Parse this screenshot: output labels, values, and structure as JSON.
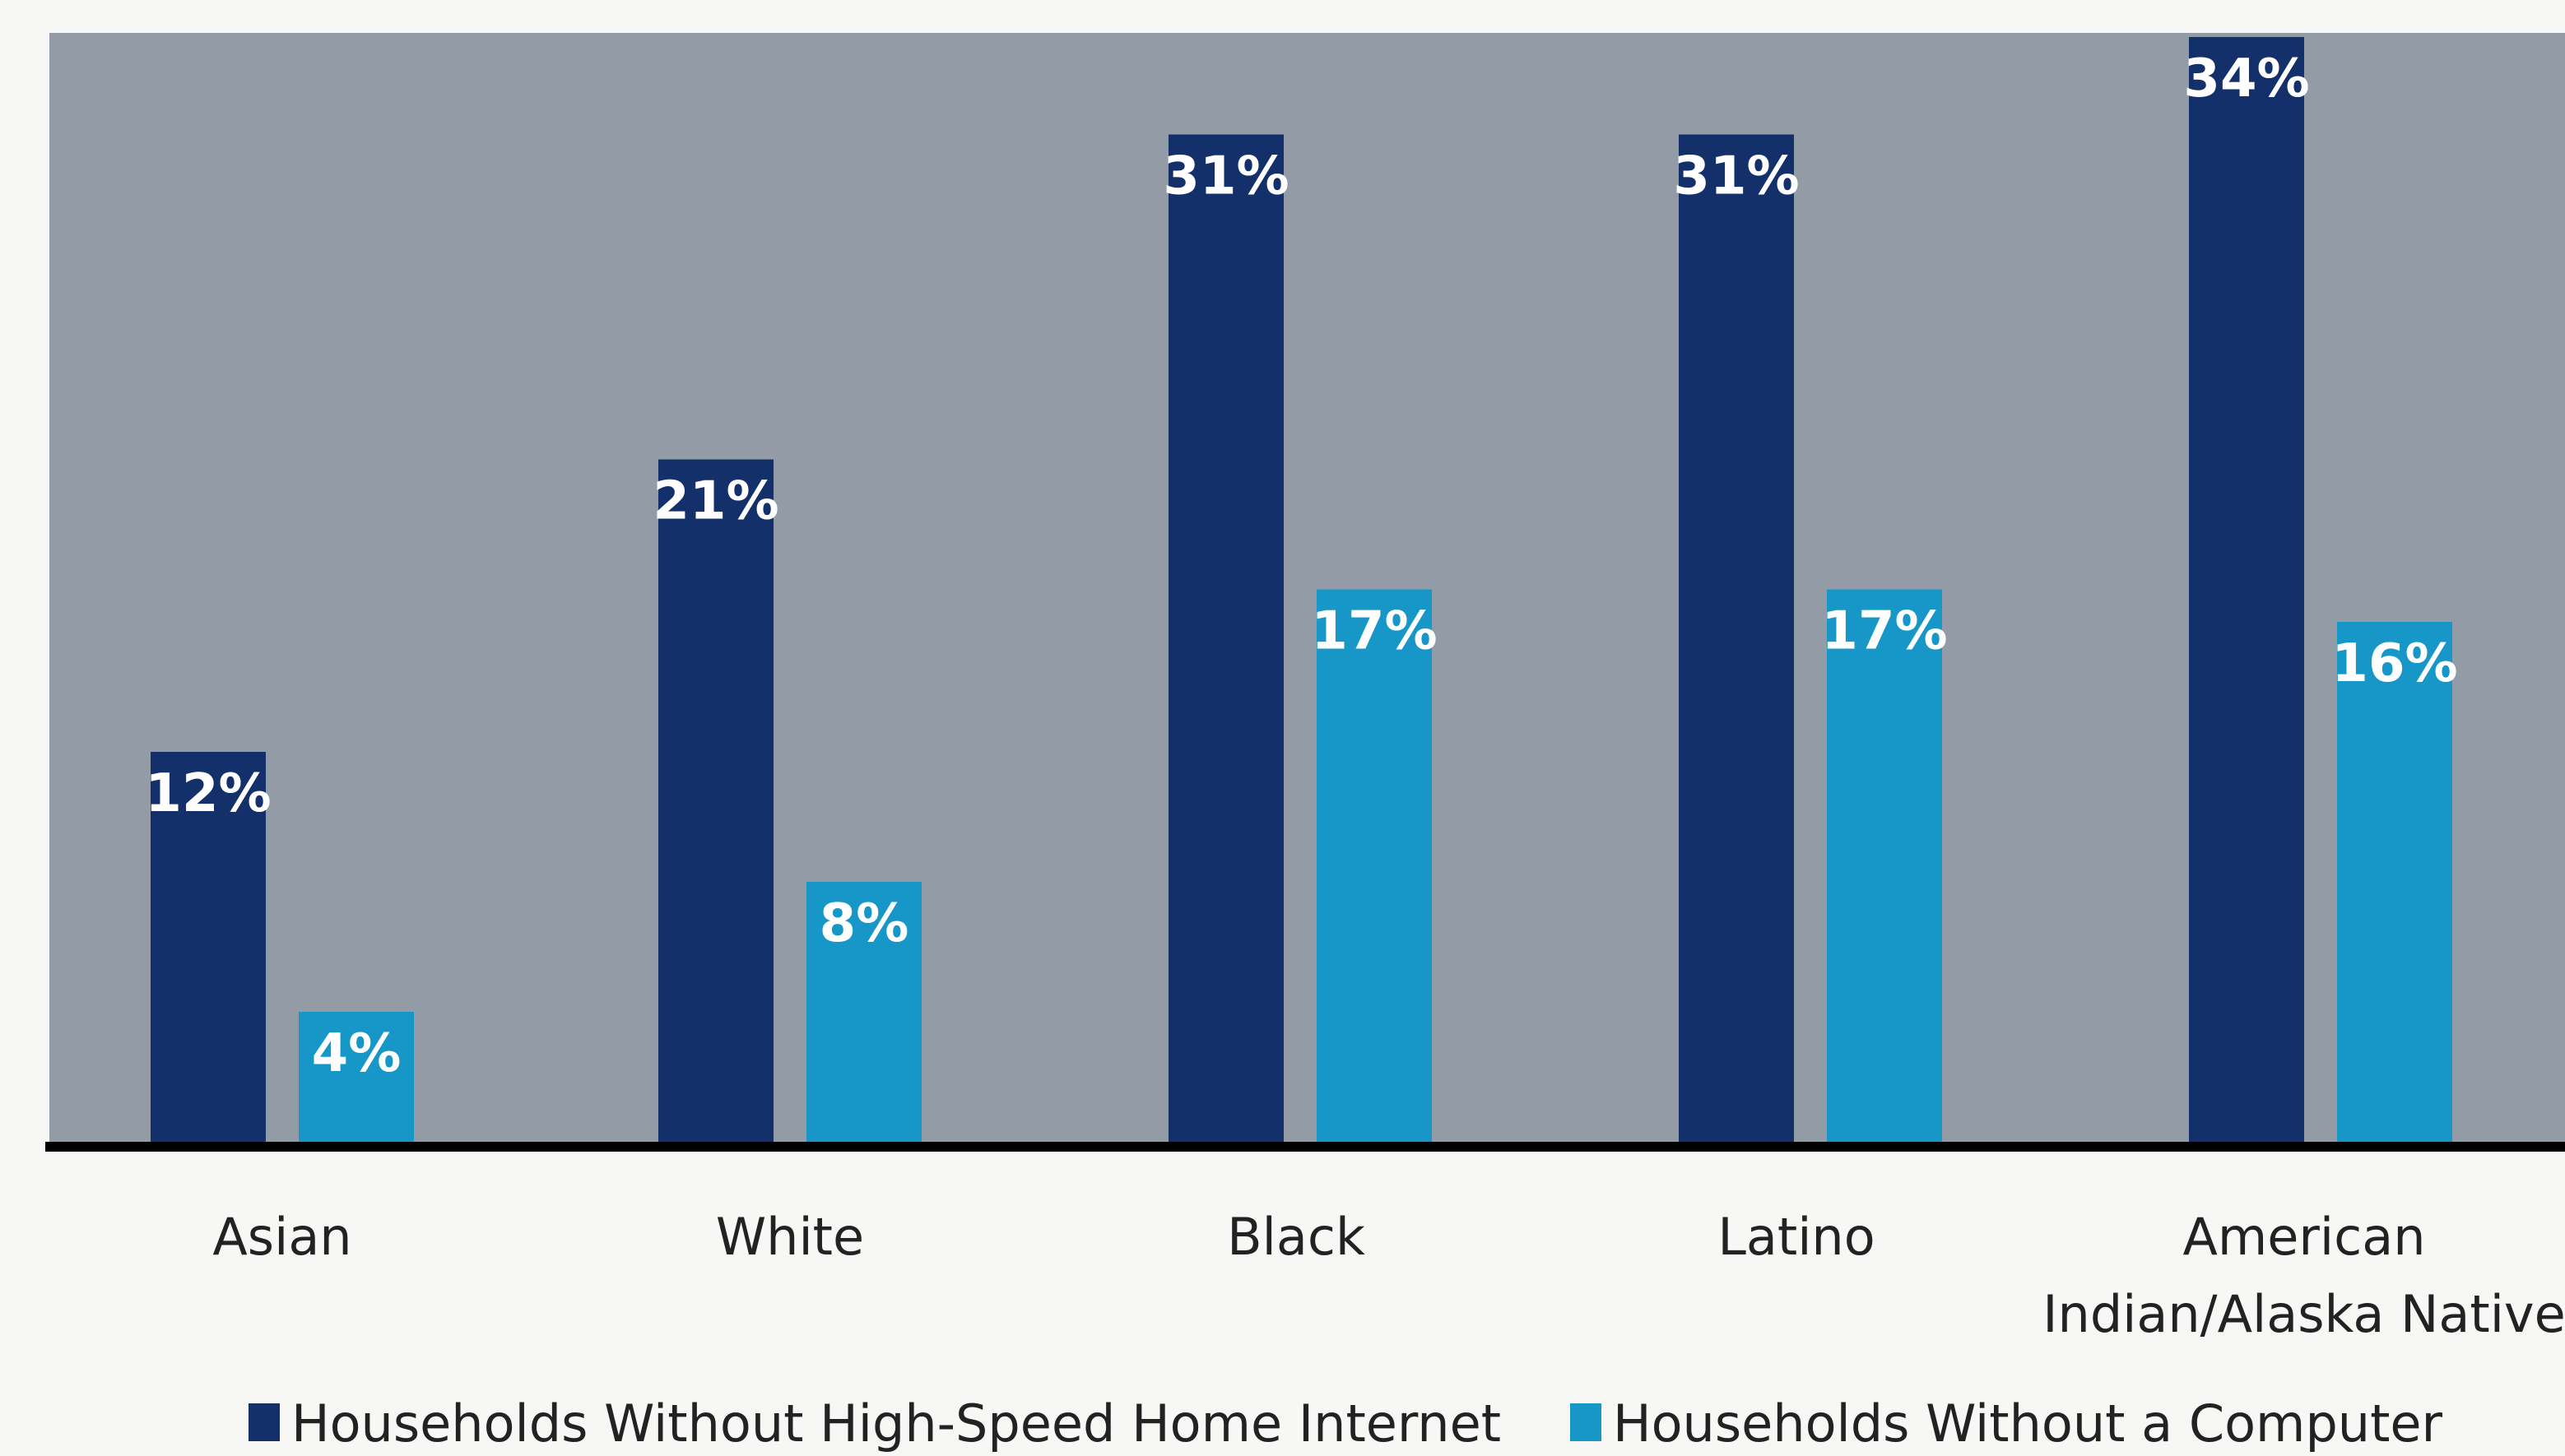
{
  "chart_data": {
    "type": "bar",
    "categories": [
      [
        "Asian"
      ],
      [
        "White"
      ],
      [
        "Black"
      ],
      [
        "Latino"
      ],
      [
        "American",
        "Indian/Alaska Native"
      ]
    ],
    "series": [
      {
        "name": "Households Without High-Speed Home Internet",
        "color": "#14306b",
        "values": [
          12,
          21,
          31,
          31,
          34
        ],
        "labels": [
          "12%",
          "21%",
          "31%",
          "31%",
          "34%"
        ]
      },
      {
        "name": "Households Without a Computer",
        "color": "#1797c7",
        "values": [
          4,
          8,
          17,
          17,
          16
        ],
        "labels": [
          "4%",
          "8%",
          "17%",
          "17%",
          "16%"
        ]
      }
    ],
    "ylim": [
      0,
      38
    ],
    "grid": false,
    "legend_position": "bottom",
    "colors": {
      "plot_background": "#939ca6",
      "axis_line": "#000000"
    }
  }
}
